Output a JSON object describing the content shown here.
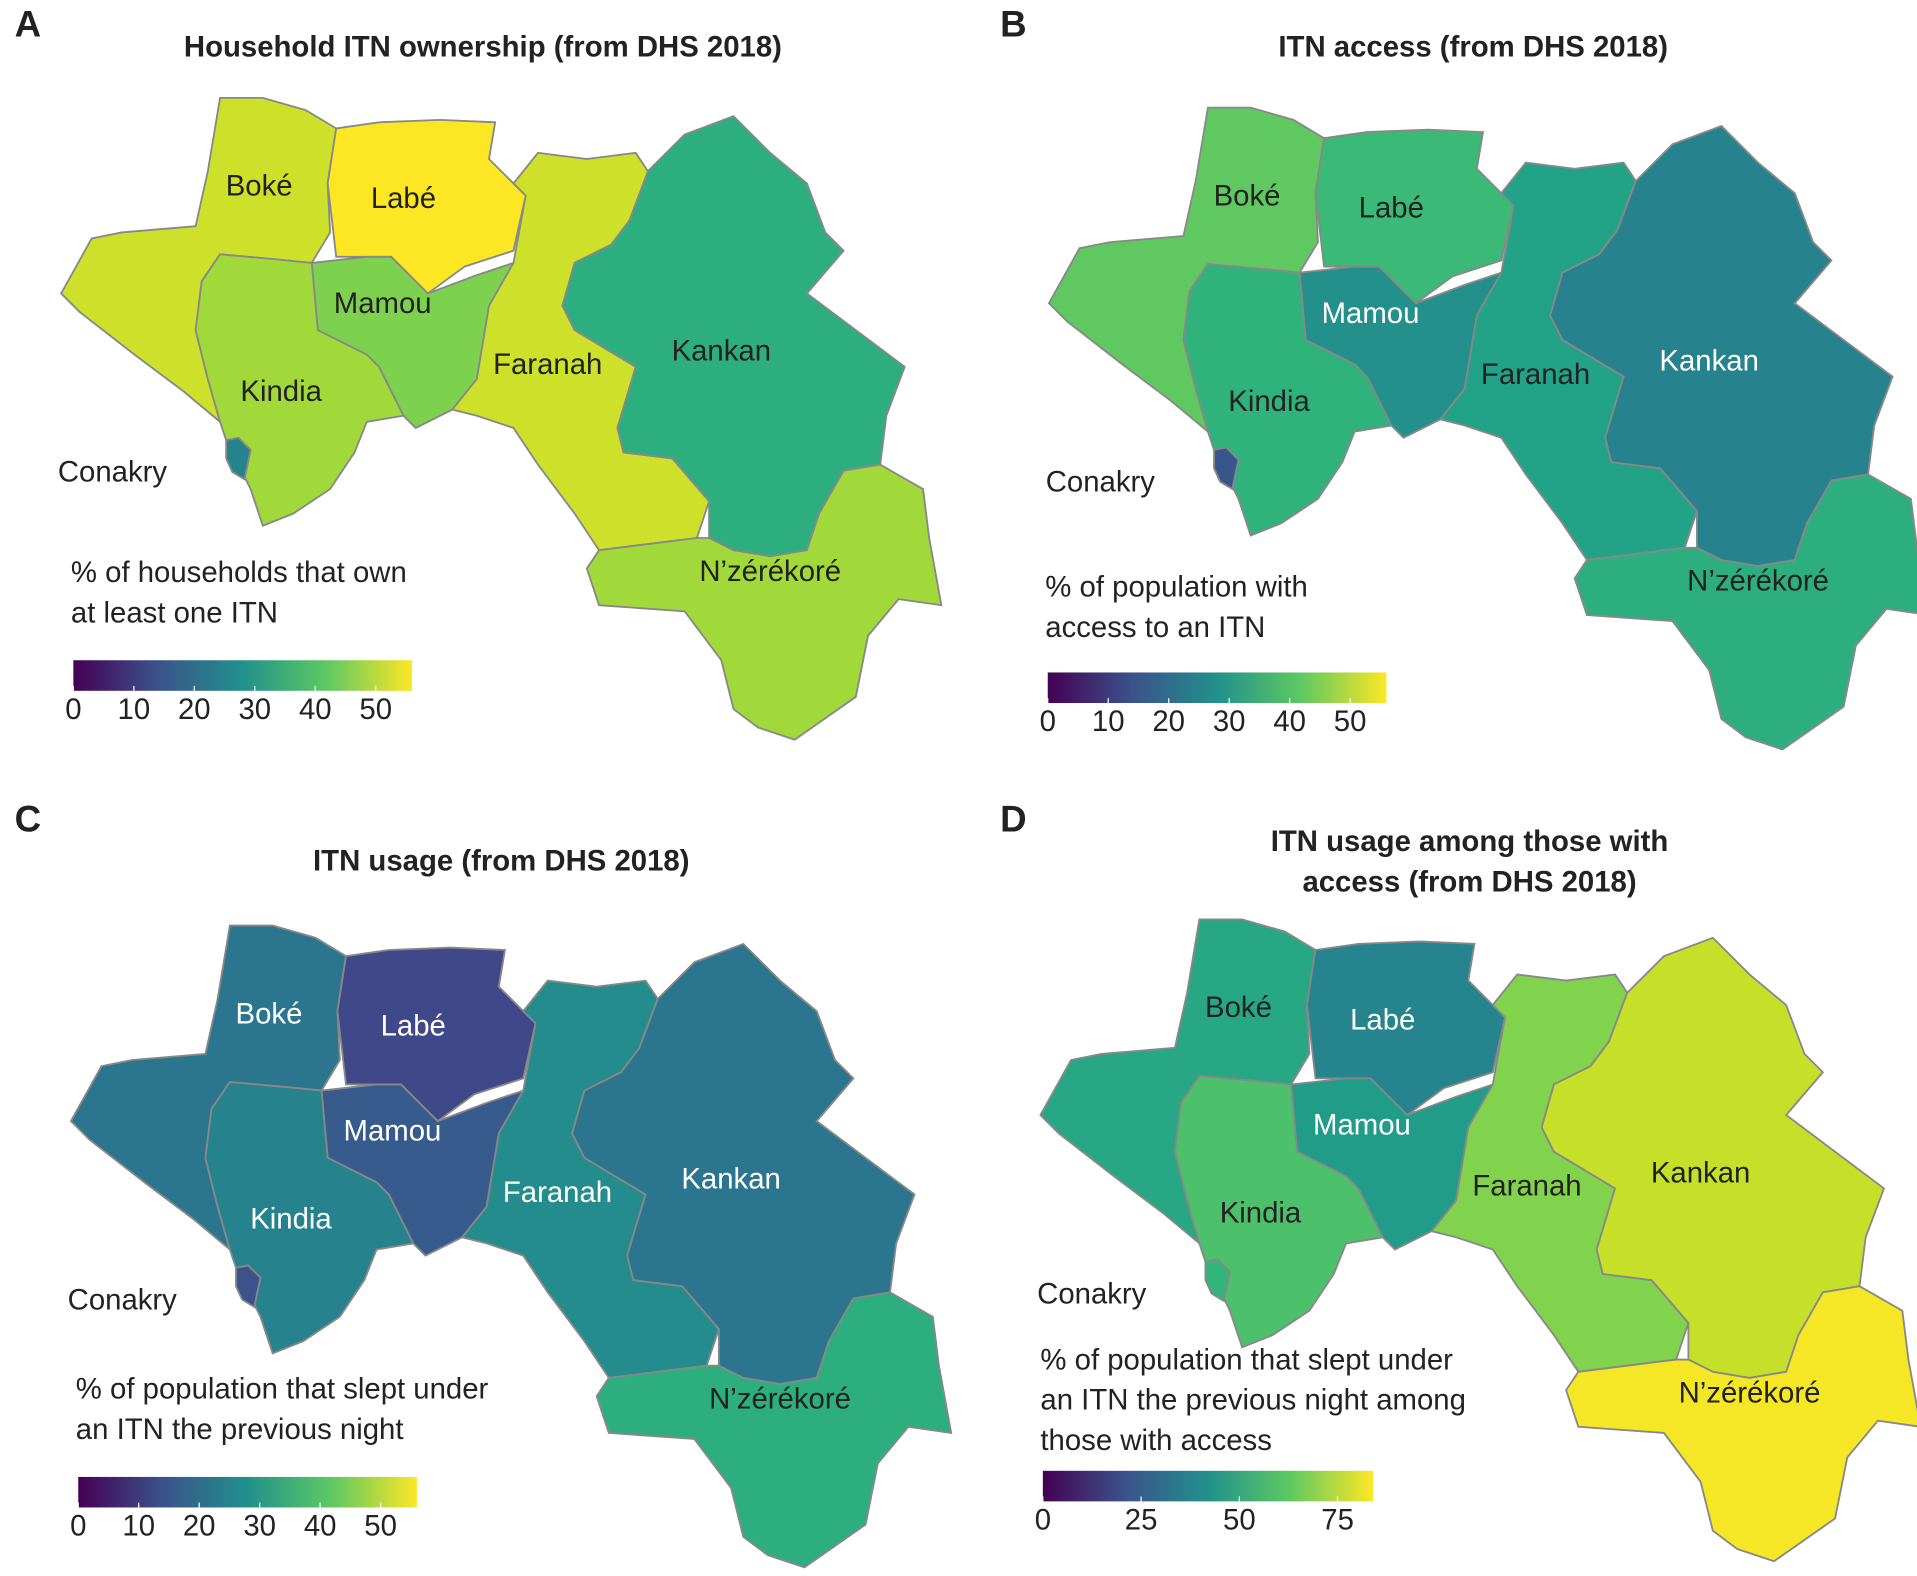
{
  "panels": [
    {
      "label": "A",
      "title": [
        "Household ITN ownership (from DHS 2018)"
      ],
      "legend_title": [
        "% of households that own",
        "at least one ITN"
      ],
      "lim": [
        0,
        56
      ],
      "ticks": [
        0,
        10,
        20,
        30,
        40,
        50
      ],
      "regions": [
        {
          "name": "Boké",
          "value": 52
        },
        {
          "name": "Labé",
          "value": 56
        },
        {
          "name": "Mamou",
          "value": 45
        },
        {
          "name": "Kindia",
          "value": 48
        },
        {
          "name": "Faranah",
          "value": 52
        },
        {
          "name": "Kankan",
          "value": 35
        },
        {
          "name": "N’zérékoré",
          "value": 48
        },
        {
          "name": "Conakry",
          "value": 25
        }
      ]
    },
    {
      "label": "B",
      "title": [
        "ITN access (from DHS 2018)"
      ],
      "legend_title": [
        "% of population with",
        "access to an ITN"
      ],
      "lim": [
        0,
        56
      ],
      "ticks": [
        0,
        10,
        20,
        30,
        40,
        50
      ],
      "regions": [
        {
          "name": "Boké",
          "value": 42
        },
        {
          "name": "Labé",
          "value": 38
        },
        {
          "name": "Mamou",
          "value": 28
        },
        {
          "name": "Kindia",
          "value": 36
        },
        {
          "name": "Faranah",
          "value": 32
        },
        {
          "name": "Kankan",
          "value": 25
        },
        {
          "name": "N’zérékoré",
          "value": 35
        },
        {
          "name": "Conakry",
          "value": 15
        }
      ]
    },
    {
      "label": "C",
      "title": [
        "ITN usage (from DHS 2018)"
      ],
      "legend_title": [
        "% of population that slept under",
        "an ITN the previous night"
      ],
      "lim": [
        0,
        56
      ],
      "ticks": [
        0,
        10,
        20,
        30,
        40,
        50
      ],
      "regions": [
        {
          "name": "Boké",
          "value": 22
        },
        {
          "name": "Labé",
          "value": 12
        },
        {
          "name": "Mamou",
          "value": 16
        },
        {
          "name": "Kindia",
          "value": 25
        },
        {
          "name": "Faranah",
          "value": 27
        },
        {
          "name": "Kankan",
          "value": 22
        },
        {
          "name": "N’zérékoré",
          "value": 35
        },
        {
          "name": "Conakry",
          "value": 14
        }
      ]
    },
    {
      "label": "D",
      "title": [
        "ITN usage among those with",
        "access (from DHS 2018)"
      ],
      "legend_title": [
        "% of population that slept under",
        "an ITN the previous night among",
        "those with access"
      ],
      "lim": [
        0,
        84
      ],
      "ticks": [
        0,
        25,
        50,
        75
      ],
      "regions": [
        {
          "name": "Boké",
          "value": 50
        },
        {
          "name": "Labé",
          "value": 38
        },
        {
          "name": "Mamou",
          "value": 46
        },
        {
          "name": "Kindia",
          "value": 60
        },
        {
          "name": "Faranah",
          "value": 68
        },
        {
          "name": "Kankan",
          "value": 77
        },
        {
          "name": "N’zérékoré",
          "value": 83
        },
        {
          "name": "Conakry",
          "value": 55
        }
      ]
    }
  ]
}
